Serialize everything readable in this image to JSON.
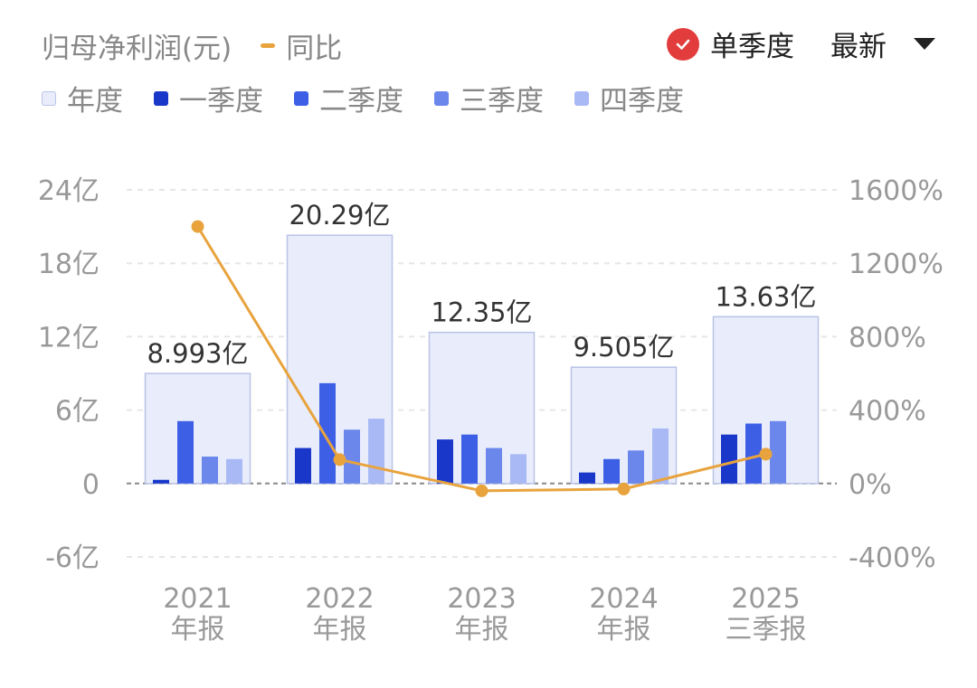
{
  "header": {
    "title": "归母净利润(元)",
    "yoy_label": "同比",
    "single_quarter_label": "单季度",
    "latest_label": "最新"
  },
  "legend": [
    {
      "label": "年度",
      "color": "#e9edfb",
      "border": "#b9c3e6"
    },
    {
      "label": "一季度",
      "color": "#1937c9"
    },
    {
      "label": "二季度",
      "color": "#3d5fe6"
    },
    {
      "label": "三季度",
      "color": "#6b87ec"
    },
    {
      "label": "四季度",
      "color": "#a9b9f5"
    }
  ],
  "colors": {
    "accent_line": "#e8a33d",
    "annual_fill": "#e9edfb",
    "annual_border": "#b9c3e6",
    "check_red": "#e23c3c",
    "axis_text": "#999999",
    "grid": "#e6e6e6",
    "zero_line": "#888888"
  },
  "chart_data": {
    "type": "bar",
    "categories": [
      "2021\n年报",
      "2022\n年报",
      "2023\n年报",
      "2024\n年报",
      "2025\n三季报"
    ],
    "annual": [
      8.993,
      20.29,
      12.35,
      9.505,
      13.63
    ],
    "annual_labels": [
      "8.993亿",
      "20.29亿",
      "12.35亿",
      "9.505亿",
      "13.63亿"
    ],
    "series": [
      {
        "name": "一季度",
        "values": [
          0.3,
          2.9,
          3.6,
          0.9,
          4.0
        ]
      },
      {
        "name": "二季度",
        "values": [
          5.1,
          8.2,
          4.0,
          2.0,
          4.9
        ]
      },
      {
        "name": "三季度",
        "values": [
          2.2,
          4.4,
          2.9,
          2.7,
          5.1
        ]
      },
      {
        "name": "四季度",
        "values": [
          2.0,
          5.3,
          2.4,
          4.5,
          null
        ]
      }
    ],
    "yoy": [
      1400,
      130,
      -40,
      -30,
      160
    ],
    "left_axis": {
      "ylim": [
        -6,
        24
      ],
      "ticks": [
        24,
        18,
        12,
        6,
        0,
        -6
      ],
      "tick_labels": [
        "24亿",
        "18亿",
        "12亿",
        "6亿",
        "0",
        "-6亿"
      ]
    },
    "right_axis": {
      "ylim": [
        -400,
        1600
      ],
      "ticks": [
        1600,
        1200,
        800,
        400,
        0,
        -400
      ],
      "tick_labels": [
        "1600%",
        "1200%",
        "800%",
        "400%",
        "0%",
        "-400%"
      ]
    },
    "grid": true
  }
}
